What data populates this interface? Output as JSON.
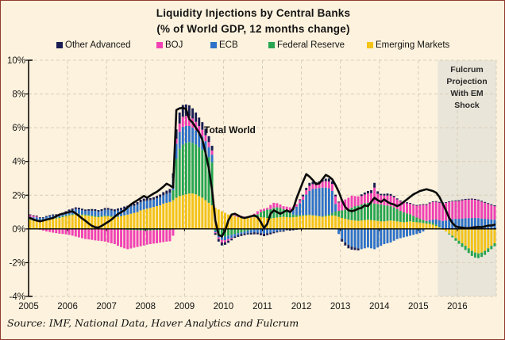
{
  "title": {
    "line1": "Liquidity Injections by Central Banks",
    "line2": "(% of World GDP, 12 months change)"
  },
  "legend": [
    {
      "label": "Other Advanced",
      "color": "#191d52"
    },
    {
      "label": "BOJ",
      "color": "#f042b4"
    },
    {
      "label": "ECB",
      "color": "#2d72c8"
    },
    {
      "label": "Federal Reserve",
      "color": "#27a551"
    },
    {
      "label": "Emerging Markets",
      "color": "#f3c318"
    }
  ],
  "annotations": {
    "total_world": "Total World",
    "projection": {
      "line1": "Fulcrum",
      "line2": "Projection",
      "line3": "With EM",
      "line4": "Shock"
    }
  },
  "source": "Source: IMF, National Data, Haver Analytics and Fulcrum",
  "colors": {
    "background": "#fdf2dd",
    "projection_shade": "#e9e5d8",
    "grid": "#d9cdb8",
    "axis": "#000000",
    "total_line": "#0a0a0a",
    "border": "#93392e"
  },
  "chart_data": {
    "type": "bar",
    "subtype": "monthly stacked bars with total line overlay",
    "unit": "% of World GDP, 12 months change",
    "x_start_year": 2005,
    "x_end_year": 2016,
    "months_per_year": 12,
    "ylim": [
      -4,
      10
    ],
    "y_ticks": [
      10,
      8,
      6,
      4,
      2,
      0,
      -2,
      -4
    ],
    "y_tick_labels": [
      "10%",
      "8%",
      "6%",
      "4%",
      "2%",
      "0%",
      "-2%",
      "-4%"
    ],
    "x_tick_labels": [
      "2005",
      "2006",
      "2007",
      "2008",
      "2009",
      "2010",
      "2011",
      "2012",
      "2013",
      "2014",
      "2015",
      "2016"
    ],
    "grid": true,
    "legend_position": "top",
    "projection_start_month_index": 126,
    "stack_order_bottom_to_top": [
      "Emerging Markets",
      "Federal Reserve",
      "ECB",
      "BOJ",
      "Other Advanced"
    ],
    "series": [
      {
        "name": "Emerging Markets",
        "color": "#f3c318",
        "values": [
          0.55,
          0.52,
          0.5,
          0.48,
          0.5,
          0.55,
          0.58,
          0.6,
          0.62,
          0.65,
          0.7,
          0.75,
          0.8,
          0.82,
          0.85,
          0.85,
          0.82,
          0.8,
          0.78,
          0.75,
          0.72,
          0.7,
          0.72,
          0.75,
          0.75,
          0.72,
          0.7,
          0.72,
          0.75,
          0.8,
          0.85,
          0.9,
          0.95,
          1.0,
          1.1,
          1.15,
          1.2,
          1.25,
          1.3,
          1.35,
          1.4,
          1.5,
          1.55,
          1.6,
          1.7,
          1.85,
          1.95,
          2.0,
          2.05,
          2.1,
          2.1,
          2.05,
          1.95,
          1.85,
          1.7,
          1.55,
          1.4,
          1.25,
          1.15,
          1.05,
          0.95,
          0.85,
          0.8,
          0.75,
          0.7,
          0.68,
          0.65,
          0.65,
          0.68,
          0.7,
          0.72,
          0.7,
          0.68,
          0.65,
          0.62,
          0.65,
          0.68,
          0.7,
          0.72,
          0.7,
          0.68,
          0.7,
          0.72,
          0.75,
          0.78,
          0.8,
          0.82,
          0.8,
          0.78,
          0.75,
          0.72,
          0.75,
          0.78,
          0.8,
          0.78,
          0.72,
          0.65,
          0.6,
          0.55,
          0.52,
          0.5,
          0.48,
          0.5,
          0.52,
          0.55,
          0.52,
          0.5,
          0.48,
          0.45,
          0.45,
          0.48,
          0.5,
          0.48,
          0.45,
          0.42,
          0.4,
          0.42,
          0.45,
          0.42,
          0.4,
          0.38,
          0.35,
          0.32,
          0.3,
          0.25,
          0.18,
          0.08,
          -0.05,
          -0.15,
          -0.28,
          -0.4,
          -0.55,
          -0.7,
          -0.85,
          -1.0,
          -1.15,
          -1.3,
          -1.4,
          -1.45,
          -1.4,
          -1.3,
          -1.15,
          -1.0,
          -0.85
        ]
      },
      {
        "name": "Federal Reserve",
        "color": "#27a551",
        "values": [
          0.05,
          0.05,
          0.05,
          0.05,
          0.05,
          0.05,
          0.05,
          0.05,
          0.05,
          0.05,
          0.05,
          0.05,
          0.05,
          0.05,
          0.05,
          0.05,
          0.05,
          0.05,
          0.05,
          0.05,
          0.05,
          0.05,
          0.05,
          0.05,
          0.04,
          0.04,
          0.03,
          0.03,
          0.02,
          0.02,
          -0.05,
          -0.06,
          -0.06,
          -0.07,
          -0.08,
          -0.08,
          -0.08,
          -0.08,
          -0.07,
          -0.07,
          -0.06,
          -0.06,
          -0.05,
          -0.05,
          0.6,
          2.3,
          2.8,
          3.0,
          3.05,
          3.05,
          3.0,
          2.95,
          2.9,
          2.85,
          2.8,
          2.7,
          2.55,
          -0.1,
          -0.35,
          -0.45,
          -0.45,
          -0.4,
          -0.35,
          -0.3,
          -0.25,
          -0.2,
          -0.15,
          -0.1,
          -0.05,
          0.05,
          0.15,
          0.3,
          0.4,
          0.5,
          0.55,
          0.6,
          0.6,
          0.55,
          0.45,
          0.35,
          0.25,
          0.15,
          0.1,
          0.08,
          0.05,
          0.04,
          0.03,
          0.02,
          0.02,
          0.02,
          0.03,
          0.05,
          0.08,
          0.15,
          0.25,
          0.35,
          0.45,
          0.55,
          0.65,
          0.75,
          0.85,
          0.9,
          0.95,
          1.0,
          1.0,
          1.0,
          1.0,
          1.0,
          1.0,
          0.95,
          0.9,
          0.85,
          0.8,
          0.72,
          0.65,
          0.58,
          0.5,
          0.42,
          0.35,
          0.28,
          0.22,
          0.18,
          0.15,
          0.12,
          0.1,
          0.08,
          0.05,
          0.02,
          0.0,
          -0.05,
          -0.1,
          -0.15,
          -0.18,
          -0.22,
          -0.25,
          -0.28,
          -0.3,
          -0.3,
          -0.28,
          -0.26,
          -0.24,
          -0.22,
          -0.2,
          -0.18
        ]
      },
      {
        "name": "ECB",
        "color": "#2d72c8",
        "values": [
          0.12,
          0.12,
          0.14,
          0.12,
          0.1,
          0.12,
          0.14,
          0.15,
          0.14,
          0.12,
          0.15,
          0.18,
          0.22,
          0.25,
          0.28,
          0.26,
          0.24,
          0.22,
          0.25,
          0.28,
          0.3,
          0.28,
          0.3,
          0.33,
          0.35,
          0.33,
          0.32,
          0.34,
          0.36,
          0.38,
          0.4,
          0.44,
          0.42,
          0.45,
          0.48,
          0.5,
          0.48,
          0.45,
          0.44,
          0.46,
          0.48,
          0.5,
          0.52,
          0.55,
          0.7,
          0.9,
          1.0,
          1.05,
          1.0,
          0.95,
          0.9,
          0.85,
          0.8,
          0.78,
          0.7,
          0.6,
          0.45,
          -0.1,
          -0.15,
          -0.2,
          -0.22,
          -0.2,
          -0.18,
          -0.15,
          -0.12,
          -0.1,
          -0.12,
          -0.15,
          -0.18,
          -0.2,
          -0.22,
          -0.25,
          -0.28,
          -0.25,
          -0.22,
          -0.18,
          -0.15,
          -0.12,
          -0.1,
          0.05,
          0.15,
          0.3,
          0.5,
          0.7,
          0.9,
          1.2,
          1.4,
          1.55,
          1.6,
          1.65,
          1.7,
          1.65,
          1.55,
          1.3,
          0.45,
          -0.3,
          -0.6,
          -0.8,
          -0.95,
          -1.05,
          -1.1,
          -1.15,
          -1.2,
          -1.15,
          -1.1,
          -1.15,
          -1.2,
          -1.1,
          -1.0,
          -0.9,
          -0.85,
          -0.8,
          -0.7,
          -0.6,
          -0.55,
          -0.5,
          -0.45,
          -0.4,
          -0.35,
          -0.3,
          -0.25,
          -0.15,
          0.0,
          0.1,
          0.2,
          0.3,
          0.38,
          0.45,
          0.5,
          0.55,
          0.58,
          0.6,
          0.6,
          0.62,
          0.63,
          0.64,
          0.65,
          0.65,
          0.64,
          0.62,
          0.6,
          0.58,
          0.56,
          0.55
        ]
      },
      {
        "name": "BOJ",
        "color": "#f042b4",
        "values": [
          0.1,
          0.08,
          0.05,
          -0.05,
          -0.1,
          -0.15,
          -0.18,
          -0.22,
          -0.25,
          -0.28,
          -0.3,
          -0.32,
          -0.35,
          -0.4,
          -0.45,
          -0.5,
          -0.55,
          -0.6,
          -0.62,
          -0.65,
          -0.68,
          -0.7,
          -0.72,
          -0.75,
          -0.8,
          -0.85,
          -0.9,
          -1.0,
          -1.08,
          -1.15,
          -1.15,
          -1.1,
          -1.05,
          -1.0,
          -0.95,
          -0.9,
          -0.85,
          -0.82,
          -0.8,
          -0.78,
          -0.75,
          -0.72,
          -0.7,
          -0.68,
          -0.4,
          0.3,
          0.5,
          0.6,
          0.6,
          0.58,
          0.55,
          0.5,
          0.45,
          0.4,
          0.35,
          0.3,
          0.25,
          -0.05,
          -0.1,
          -0.15,
          -0.12,
          -0.1,
          -0.05,
          0.05,
          0.08,
          0.1,
          0.08,
          0.1,
          0.12,
          0.15,
          0.18,
          0.15,
          0.12,
          0.1,
          0.25,
          0.3,
          0.25,
          0.2,
          0.18,
          0.22,
          0.2,
          0.18,
          0.15,
          0.18,
          0.2,
          0.25,
          0.3,
          0.28,
          0.25,
          0.3,
          0.35,
          0.38,
          0.4,
          0.42,
          0.45,
          0.5,
          0.55,
          0.6,
          0.65,
          0.7,
          0.6,
          0.55,
          0.5,
          0.52,
          0.55,
          0.6,
          0.95,
          0.6,
          0.55,
          0.58,
          0.6,
          0.62,
          0.6,
          0.58,
          0.56,
          0.58,
          0.6,
          0.62,
          0.65,
          0.7,
          0.8,
          0.9,
          0.95,
          1.0,
          1.05,
          1.05,
          1.05,
          1.05,
          1.05,
          1.05,
          1.05,
          1.05,
          1.05,
          1.08,
          1.1,
          1.1,
          1.1,
          1.08,
          1.05,
          1.0,
          0.95,
          0.9,
          0.85,
          0.8
        ]
      },
      {
        "name": "Other Advanced",
        "color": "#191d52",
        "values": [
          0.04,
          0.04,
          0.05,
          0.04,
          0.04,
          0.05,
          0.05,
          0.06,
          0.06,
          0.05,
          0.06,
          0.07,
          0.08,
          0.09,
          0.1,
          0.1,
          0.09,
          0.08,
          0.09,
          0.1,
          0.1,
          0.09,
          0.1,
          0.11,
          0.1,
          0.1,
          0.11,
          0.12,
          0.12,
          0.13,
          0.13,
          0.14,
          0.13,
          0.14,
          0.15,
          0.15,
          0.14,
          0.13,
          0.14,
          0.15,
          0.16,
          0.18,
          0.2,
          0.22,
          0.3,
          0.55,
          0.65,
          0.7,
          0.68,
          0.65,
          0.6,
          0.55,
          0.5,
          0.45,
          0.4,
          0.35,
          0.28,
          -0.1,
          -0.15,
          -0.18,
          -0.15,
          -0.12,
          -0.1,
          -0.08,
          -0.1,
          -0.12,
          -0.1,
          -0.08,
          -0.1,
          -0.12,
          -0.1,
          -0.12,
          -0.15,
          -0.12,
          -0.1,
          -0.08,
          -0.06,
          -0.05,
          -0.06,
          -0.08,
          -0.1,
          -0.08,
          -0.05,
          0.05,
          0.1,
          0.15,
          0.18,
          0.15,
          0.12,
          0.1,
          0.12,
          0.15,
          0.18,
          0.15,
          0.1,
          0.05,
          -0.15,
          -0.18,
          -0.2,
          -0.18,
          -0.15,
          -0.12,
          0.1,
          0.12,
          0.15,
          0.18,
          0.28,
          0.15,
          0.08,
          0.1,
          0.12,
          0.1,
          0.08,
          0.06,
          0.05,
          0.05,
          0.06,
          0.05,
          0.04,
          0.04,
          0.04,
          0.04,
          0.05,
          0.05,
          0.04,
          0.04,
          0.04,
          0.04,
          0.04,
          0.04,
          0.04,
          0.04,
          0.05,
          0.05,
          0.05,
          0.05,
          0.05,
          0.05,
          0.05,
          0.05,
          0.05,
          0.05,
          0.05,
          0.05
        ]
      }
    ],
    "total_line": {
      "name": "Total World",
      "color": "#0a0a0a",
      "values": [
        0.65,
        0.55,
        0.5,
        0.45,
        0.5,
        0.55,
        0.6,
        0.65,
        0.75,
        0.85,
        0.9,
        0.95,
        1.0,
        1.05,
        0.92,
        0.78,
        0.62,
        0.48,
        0.32,
        0.18,
        0.1,
        0.08,
        0.18,
        0.3,
        0.42,
        0.55,
        0.72,
        0.88,
        1.0,
        1.1,
        1.28,
        1.45,
        1.58,
        1.7,
        1.82,
        1.95,
        1.85,
        1.98,
        2.1,
        2.2,
        2.35,
        2.5,
        2.68,
        2.58,
        2.45,
        7.05,
        7.15,
        7.18,
        7.1,
        6.5,
        6.3,
        6.0,
        5.7,
        5.3,
        4.5,
        3.6,
        2.3,
        0.5,
        -0.35,
        -0.45,
        -0.1,
        0.5,
        0.85,
        0.9,
        0.8,
        0.7,
        0.65,
        0.7,
        0.75,
        0.8,
        0.7,
        0.4,
        0.05,
        0.3,
        0.9,
        1.1,
        1.0,
        0.9,
        1.0,
        1.1,
        1.0,
        1.2,
        1.8,
        2.3,
        2.8,
        3.25,
        3.1,
        2.9,
        2.65,
        2.7,
        2.95,
        3.2,
        3.1,
        2.95,
        2.6,
        2.2,
        1.7,
        1.3,
        1.1,
        1.05,
        1.1,
        1.2,
        1.25,
        1.4,
        1.35,
        1.6,
        1.85,
        1.7,
        1.6,
        1.75,
        1.6,
        1.5,
        1.45,
        1.35,
        1.45,
        1.6,
        1.75,
        1.9,
        2.05,
        2.15,
        2.25,
        2.3,
        2.35,
        2.3,
        2.25,
        2.15,
        1.9,
        1.5,
        1.1,
        0.65,
        0.35,
        0.15,
        0.1,
        0.08,
        0.05,
        0.05,
        0.08,
        0.1,
        0.12,
        0.1,
        0.15,
        0.2,
        0.2,
        0.25
      ]
    }
  }
}
